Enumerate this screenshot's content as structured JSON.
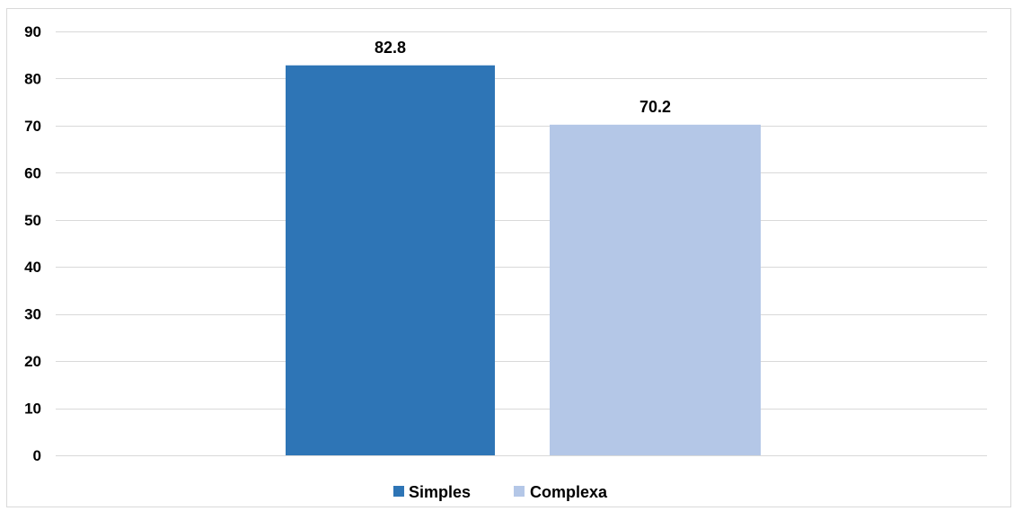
{
  "chart_data": {
    "type": "bar",
    "title": "",
    "xlabel": "",
    "ylabel": "",
    "ylim": [
      0,
      90
    ],
    "yticks": [
      0,
      10,
      20,
      30,
      40,
      50,
      60,
      70,
      80,
      90
    ],
    "grid": true,
    "legend_position": "bottom",
    "series": [
      {
        "name": "Simples",
        "value": 82.8,
        "label": "82.8",
        "color": "#2e75b6"
      },
      {
        "name": "Complexa",
        "value": 70.2,
        "label": "70.2",
        "color": "#b4c7e7"
      }
    ]
  }
}
